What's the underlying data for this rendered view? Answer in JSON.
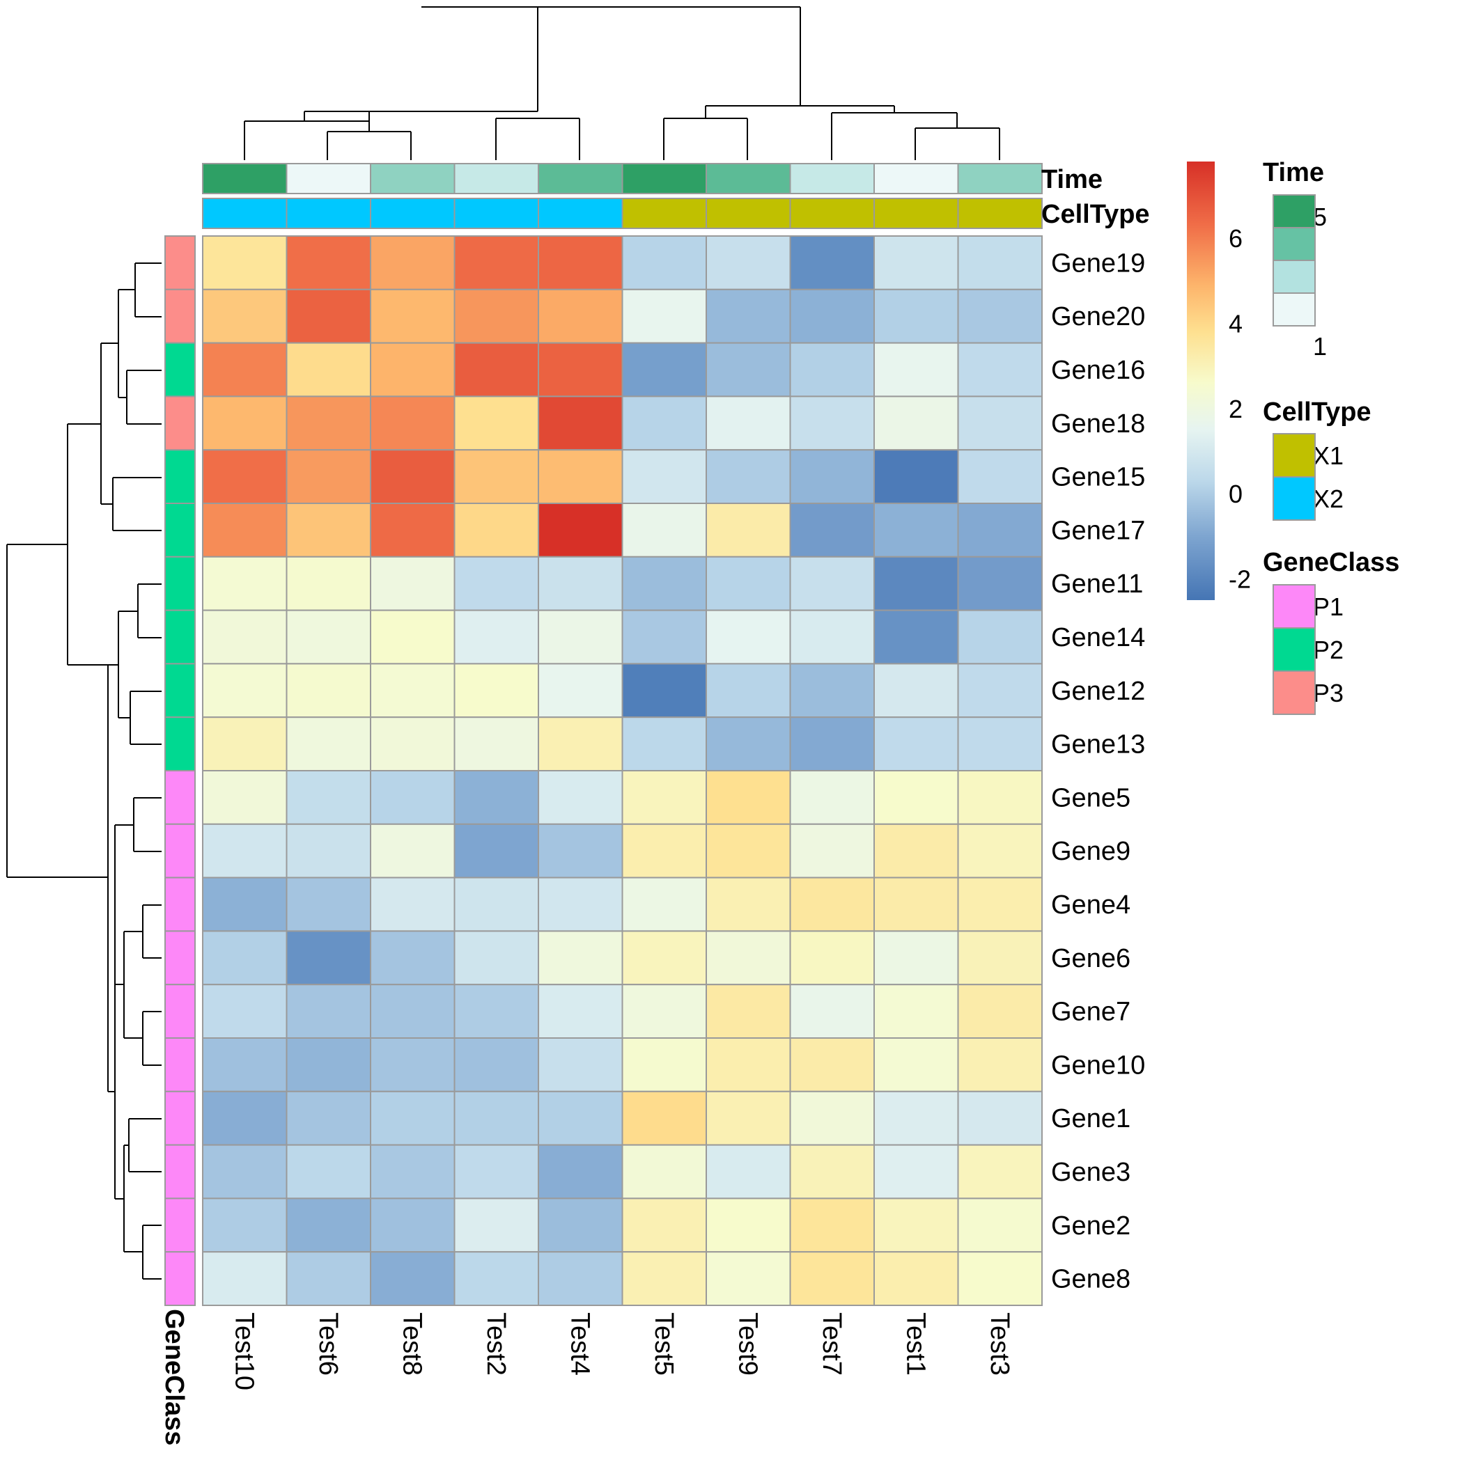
{
  "chart_data": {
    "type": "heatmap",
    "title": "",
    "columns": [
      "Test10",
      "Test6",
      "Test8",
      "Test2",
      "Test4",
      "Test5",
      "Test9",
      "Test7",
      "Test1",
      "Test3"
    ],
    "rows": [
      "Gene19",
      "Gene20",
      "Gene16",
      "Gene18",
      "Gene15",
      "Gene17",
      "Gene11",
      "Gene14",
      "Gene12",
      "Gene13",
      "Gene5",
      "Gene9",
      "Gene4",
      "Gene6",
      "Gene7",
      "Gene10",
      "Gene1",
      "Gene3",
      "Gene2",
      "Gene8"
    ],
    "values": [
      [
        3.6,
        6.3,
        5.2,
        6.4,
        6.5,
        0.2,
        0.6,
        -1.7,
        0.8,
        0.5
      ],
      [
        4.4,
        6.6,
        4.8,
        5.5,
        5.1,
        1.6,
        -0.5,
        -0.7,
        0.1,
        -0.1
      ],
      [
        5.9,
        3.9,
        4.9,
        6.7,
        6.6,
        -1.2,
        -0.4,
        0.1,
        1.6,
        0.4
      ],
      [
        4.8,
        5.5,
        5.8,
        3.8,
        7.2,
        0.2,
        1.4,
        0.6,
        1.8,
        0.6
      ],
      [
        6.3,
        5.4,
        6.7,
        4.5,
        4.7,
        0.9,
        0.0,
        -0.6,
        -2.3,
        0.4
      ],
      [
        5.7,
        4.5,
        6.4,
        4.0,
        7.8,
        1.7,
        3.3,
        -1.3,
        -0.7,
        -0.9
      ],
      [
        2.4,
        2.5,
        2.0,
        0.4,
        0.7,
        -0.4,
        0.2,
        0.6,
        -1.9,
        -1.3
      ],
      [
        2.2,
        2.1,
        2.6,
        1.3,
        1.8,
        -0.1,
        1.5,
        1.1,
        -1.6,
        0.2
      ],
      [
        2.4,
        2.5,
        2.4,
        2.6,
        1.6,
        -2.2,
        0.2,
        -0.4,
        1.0,
        0.4
      ],
      [
        3.0,
        2.1,
        2.2,
        2.0,
        3.1,
        0.3,
        -0.5,
        -0.9,
        0.4,
        0.4
      ],
      [
        2.2,
        0.5,
        0.2,
        -0.7,
        1.1,
        2.9,
        3.8,
        1.9,
        2.6,
        2.8
      ],
      [
        0.9,
        0.7,
        2.0,
        -1.0,
        -0.2,
        3.2,
        3.6,
        2.0,
        3.3,
        2.9
      ],
      [
        -0.7,
        -0.2,
        1.0,
        0.8,
        0.9,
        1.9,
        3.1,
        3.5,
        3.3,
        3.2
      ],
      [
        0.1,
        -1.6,
        -0.2,
        0.8,
        2.1,
        2.9,
        2.2,
        2.8,
        1.9,
        3.0
      ],
      [
        0.4,
        -0.2,
        -0.2,
        0.0,
        1.1,
        2.1,
        3.4,
        1.7,
        2.4,
        3.3
      ],
      [
        -0.3,
        -0.6,
        -0.2,
        -0.3,
        0.6,
        2.5,
        3.2,
        3.3,
        2.4,
        3.1
      ],
      [
        -0.8,
        -0.2,
        0.1,
        0.1,
        0.1,
        3.9,
        3.1,
        2.2,
        1.2,
        1.0
      ],
      [
        -0.2,
        0.3,
        -0.1,
        0.4,
        -0.8,
        2.3,
        1.1,
        3.0,
        1.3,
        2.9
      ],
      [
        0.0,
        -0.7,
        -0.3,
        1.2,
        -0.4,
        3.1,
        2.6,
        3.6,
        2.9,
        2.5
      ],
      [
        1.1,
        0.0,
        -0.8,
        0.3,
        0.0,
        3.1,
        2.4,
        3.6,
        3.2,
        2.6
      ]
    ],
    "color_scale": {
      "min": -2.5,
      "max": 7.8,
      "stops": [
        {
          "value": -2.5,
          "color": "#4575b4"
        },
        {
          "value": -1.0,
          "color": "#7ea5d0"
        },
        {
          "value": 0.3,
          "color": "#bcd8ea"
        },
        {
          "value": 1.5,
          "color": "#e6f4f1"
        },
        {
          "value": 2.6,
          "color": "#f7fbcc"
        },
        {
          "value": 3.8,
          "color": "#fee090"
        },
        {
          "value": 4.9,
          "color": "#fdb46b"
        },
        {
          "value": 6.3,
          "color": "#f06e48"
        },
        {
          "value": 7.8,
          "color": "#d73027"
        }
      ],
      "tick_labels": [
        "6",
        "4",
        "2",
        "0",
        "-2"
      ],
      "tick_values": [
        6,
        4,
        2,
        0,
        -2
      ]
    },
    "column_annotations": {
      "Time": {
        "label": "Time",
        "values": [
          5,
          1,
          3,
          2,
          4,
          5,
          4,
          2,
          1,
          3
        ],
        "colors": [
          "#2ea065",
          "#edf8f8",
          "#8fd2c1",
          "#c6e9e7",
          "#5cbb96",
          "#2ea065",
          "#5cbb96",
          "#c6e9e7",
          "#edf8f8",
          "#8fd2c1"
        ]
      },
      "CellType": {
        "label": "CellType",
        "values": [
          "X2",
          "X2",
          "X2",
          "X2",
          "X2",
          "X1",
          "X1",
          "X1",
          "X1",
          "X1"
        ],
        "colors": [
          "#00c8ff",
          "#00c8ff",
          "#00c8ff",
          "#00c8ff",
          "#00c8ff",
          "#c0c000",
          "#c0c000",
          "#c0c000",
          "#c0c000",
          "#c0c000"
        ]
      }
    },
    "row_annotation": {
      "label": "GeneClass",
      "values": [
        "P3",
        "P3",
        "P2",
        "P3",
        "P2",
        "P2",
        "P2",
        "P2",
        "P2",
        "P2",
        "P1",
        "P1",
        "P1",
        "P1",
        "P1",
        "P1",
        "P1",
        "P1",
        "P1",
        "P1"
      ],
      "colors": [
        "#fc8d8a",
        "#fc8d8a",
        "#00d991",
        "#fc8d8a",
        "#00d991",
        "#00d991",
        "#00d991",
        "#00d991",
        "#00d991",
        "#00d991",
        "#fd88f8",
        "#fd88f8",
        "#fd88f8",
        "#fd88f8",
        "#fd88f8",
        "#fd88f8",
        "#fd88f8",
        "#fd88f8",
        "#fd88f8",
        "#fd88f8"
      ]
    },
    "legends": {
      "time": {
        "title": "Time",
        "colors": [
          "#2ea065",
          "#66c2a4",
          "#b3e2e0",
          "#edf8f8"
        ],
        "labels": [
          "5",
          "1"
        ]
      },
      "celltype": {
        "title": "CellType",
        "items": [
          {
            "label": "X1",
            "color": "#c0c000"
          },
          {
            "label": "X2",
            "color": "#00c8ff"
          }
        ]
      },
      "geneclass": {
        "title": "GeneClass",
        "items": [
          {
            "label": "P1",
            "color": "#fd88f8"
          },
          {
            "label": "P2",
            "color": "#00d991"
          },
          {
            "label": "P3",
            "color": "#fc8d8a"
          }
        ]
      }
    },
    "column_dendrogram_order": [
      "Test10",
      "Test6",
      "Test8",
      "Test2",
      "Test4",
      "Test5",
      "Test9",
      "Test7",
      "Test1",
      "Test3"
    ],
    "row_dendrogram_order": [
      "Gene19",
      "Gene20",
      "Gene16",
      "Gene18",
      "Gene15",
      "Gene17",
      "Gene11",
      "Gene14",
      "Gene12",
      "Gene13",
      "Gene5",
      "Gene9",
      "Gene4",
      "Gene6",
      "Gene7",
      "Gene10",
      "Gene1",
      "Gene3",
      "Gene2",
      "Gene8"
    ]
  }
}
